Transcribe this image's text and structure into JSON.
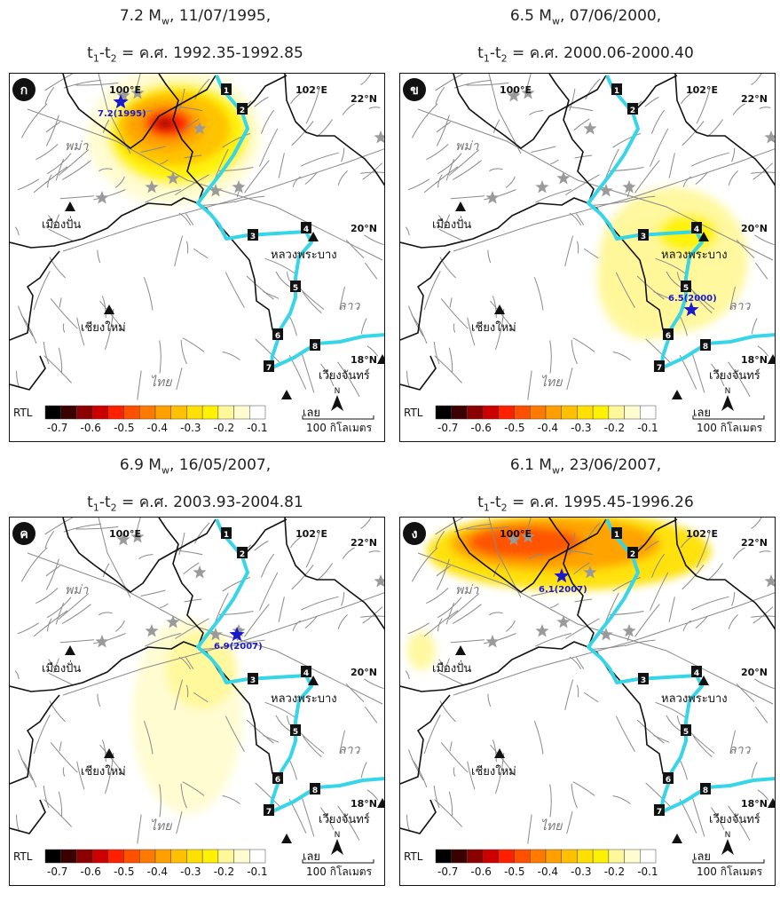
{
  "colors": {
    "river": "#36d6e8",
    "border": "#111111",
    "fault": "#8a8a8a",
    "star_grey": "#9a9a9a",
    "star_blue": "#1a1acc",
    "scale": [
      "#000000",
      "#3b0000",
      "#8b0000",
      "#cc0000",
      "#ff2000",
      "#ff5000",
      "#ff7a00",
      "#ffa000",
      "#ffc000",
      "#ffe000",
      "#fff200",
      "#fff89a",
      "#fffcd0",
      "#ffffff"
    ]
  },
  "legend": {
    "label": "RTL",
    "ticks": [
      "-0.7",
      "-0.6",
      "-0.5",
      "-0.4",
      "-0.3",
      "-0.2",
      "-0.1"
    ]
  },
  "map_labels": {
    "lon100": "100°E",
    "lon102": "102°E",
    "lat22": "22°N",
    "lat20": "20°N",
    "lat18": "18°N",
    "myanmar": "พม่า",
    "laos": "ลาว",
    "thai": "ไทย",
    "muangpan": "เมืองปั่น",
    "chiangmai": "เชียงใหม่",
    "luangprabang": "หลวงพระบาง",
    "vientiane": "เวียงจันทร์",
    "loei": "เลย",
    "scalebar": "100 กิโลเมตร",
    "north": "N",
    "stations": [
      "1",
      "2",
      "3",
      "4",
      "5",
      "6",
      "7",
      "8"
    ]
  },
  "panels": [
    {
      "id": "ก",
      "title_l1": "7.2 Mw, 11/07/1995,",
      "title_l2": "t1-t2 = ค.ศ. 1992.35-1992.85",
      "quake_label": "7.2(1995)",
      "rtl_min": -0.7
    },
    {
      "id": "ข",
      "title_l1": "6.5 Mw, 07/06/2000,",
      "title_l2": "t1-t2 = ค.ศ. 2000.06-2000.40",
      "quake_label": "6.5(2000)",
      "rtl_min": -0.25
    },
    {
      "id": "ค",
      "title_l1": "6.9 Mw, 16/05/2007,",
      "title_l2": "t1-t2 = ค.ศ. 2003.93-2004.81",
      "quake_label": "6.9(2007)",
      "rtl_min": -0.2
    },
    {
      "id": "ง",
      "title_l1": "6.1 Mw, 23/06/2007,",
      "title_l2": "t1-t2 = ค.ศ. 1995.45-1996.26",
      "quake_label": "6.1(2007)",
      "rtl_min": -0.55
    }
  ]
}
